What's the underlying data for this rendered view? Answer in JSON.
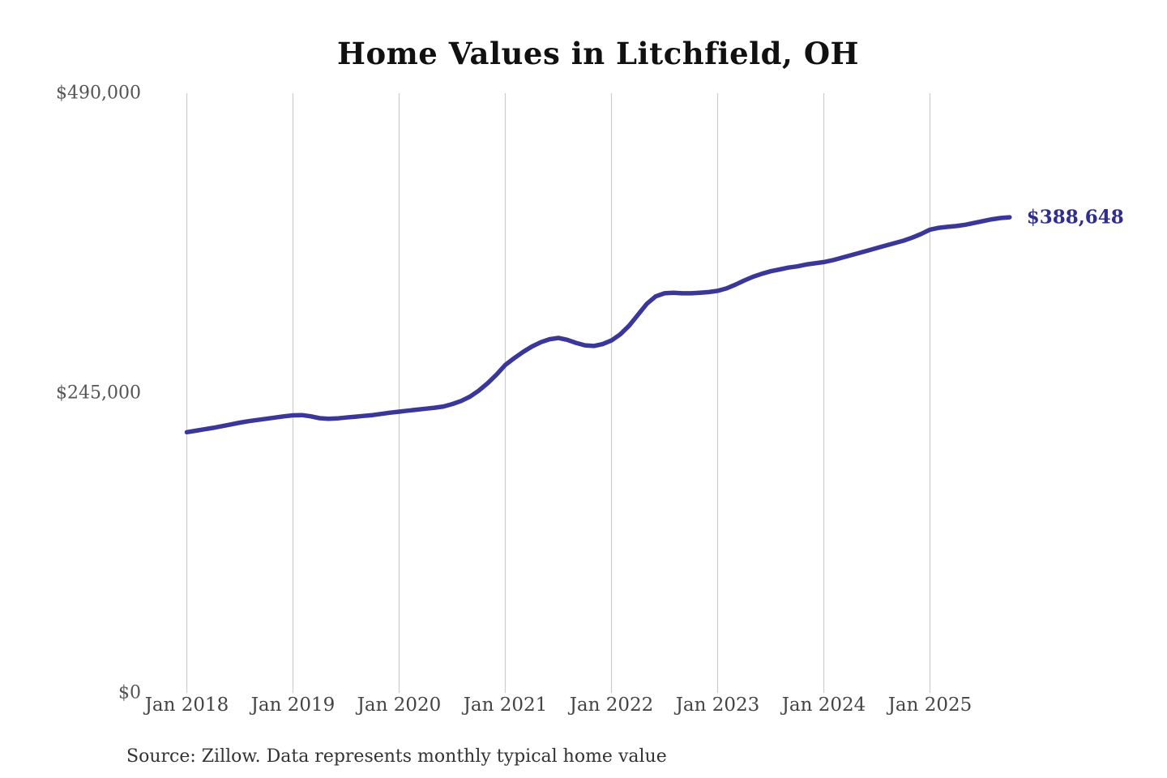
{
  "page": {
    "background": "#ffffff"
  },
  "chart_data": {
    "type": "line",
    "title": "Home Values in Litchfield, OH",
    "source_note": "Source: Zillow. Data represents monthly typical home value",
    "end_label": "$388,648",
    "colors": {
      "line": "#3a3799",
      "end_label": "#2f2d8e",
      "grid": "#cccccc",
      "y_tick": "#555555",
      "x_tick": "#444444",
      "title": "#111111",
      "source": "#333333"
    },
    "layout_hints": {
      "legend": "none",
      "grid": "vertical-only",
      "background": "white"
    },
    "ylim": [
      0,
      490000
    ],
    "y_ticks": [
      {
        "label": "$0",
        "value": 0
      },
      {
        "label": "$245,000",
        "value": 245000
      },
      {
        "label": "$490,000",
        "value": 490000
      }
    ],
    "x_ticks": [
      {
        "label": "Jan 2018",
        "month_index": 0
      },
      {
        "label": "Jan 2019",
        "month_index": 12
      },
      {
        "label": "Jan 2020",
        "month_index": 24
      },
      {
        "label": "Jan 2021",
        "month_index": 36
      },
      {
        "label": "Jan 2022",
        "month_index": 48
      },
      {
        "label": "Jan 2023",
        "month_index": 60
      },
      {
        "label": "Jan 2024",
        "month_index": 72
      },
      {
        "label": "Jan 2025",
        "month_index": 84
      }
    ],
    "x": [
      "2018-01",
      "2018-02",
      "2018-03",
      "2018-04",
      "2018-05",
      "2018-06",
      "2018-07",
      "2018-08",
      "2018-09",
      "2018-10",
      "2018-11",
      "2018-12",
      "2019-01",
      "2019-02",
      "2019-03",
      "2019-04",
      "2019-05",
      "2019-06",
      "2019-07",
      "2019-08",
      "2019-09",
      "2019-10",
      "2019-11",
      "2019-12",
      "2020-01",
      "2020-02",
      "2020-03",
      "2020-04",
      "2020-05",
      "2020-06",
      "2020-07",
      "2020-08",
      "2020-09",
      "2020-10",
      "2020-11",
      "2020-12",
      "2021-01",
      "2021-02",
      "2021-03",
      "2021-04",
      "2021-05",
      "2021-06",
      "2021-07",
      "2021-08",
      "2021-09",
      "2021-10",
      "2021-11",
      "2021-12",
      "2022-01",
      "2022-02",
      "2022-03",
      "2022-04",
      "2022-05",
      "2022-06",
      "2022-07",
      "2022-08",
      "2022-09",
      "2022-10",
      "2022-11",
      "2022-12",
      "2023-01",
      "2023-02",
      "2023-03",
      "2023-04",
      "2023-05",
      "2023-06",
      "2023-07",
      "2023-08",
      "2023-09",
      "2023-10",
      "2023-11",
      "2023-12",
      "2024-01",
      "2024-02",
      "2024-03",
      "2024-04",
      "2024-05",
      "2024-06",
      "2024-07",
      "2024-08",
      "2024-09",
      "2024-10",
      "2024-11",
      "2024-12",
      "2025-01",
      "2025-02",
      "2025-03",
      "2025-04",
      "2025-05",
      "2025-06",
      "2025-07",
      "2025-08",
      "2025-09",
      "2025-10"
    ],
    "values": [
      213000,
      214200,
      215400,
      216600,
      218000,
      219400,
      220800,
      222000,
      223000,
      224000,
      225000,
      226000,
      226800,
      227000,
      226000,
      224500,
      224000,
      224300,
      225000,
      225600,
      226300,
      227000,
      228000,
      229000,
      229800,
      230600,
      231400,
      232200,
      233000,
      234000,
      236000,
      238500,
      242000,
      247000,
      253000,
      260000,
      268000,
      273500,
      278500,
      283000,
      286500,
      289000,
      290000,
      288500,
      286000,
      284000,
      283500,
      285000,
      288000,
      293000,
      300000,
      309000,
      318000,
      324000,
      326500,
      327000,
      326500,
      326500,
      327000,
      327500,
      328500,
      330500,
      333500,
      337000,
      340000,
      342500,
      344500,
      346000,
      347500,
      348500,
      350000,
      351000,
      352000,
      353500,
      355500,
      357500,
      359500,
      361500,
      363500,
      365500,
      367500,
      369500,
      372000,
      375000,
      378500,
      380000,
      380800,
      381500,
      382500,
      384000,
      385500,
      387000,
      388000,
      388648
    ]
  }
}
